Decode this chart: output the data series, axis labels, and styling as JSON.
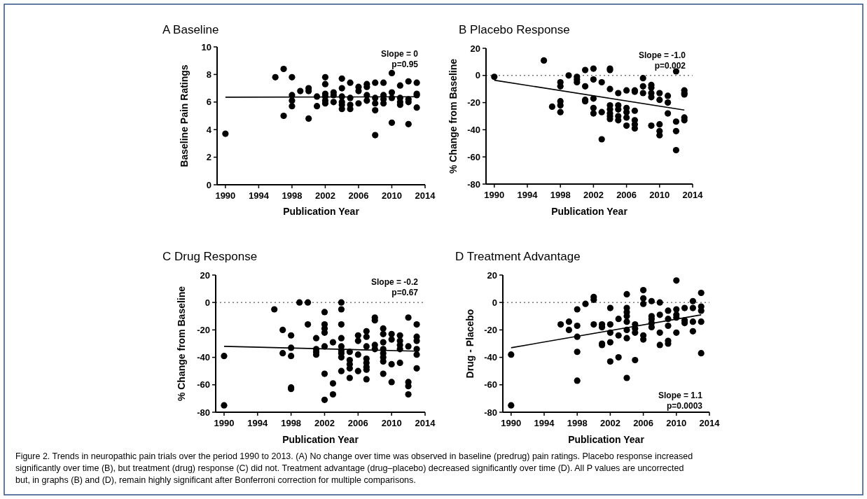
{
  "chart_data": [
    {
      "type": "scatter",
      "title": "A Baseline",
      "xlabel": "Publication Year",
      "ylabel": "Baseline Pain Ratings",
      "xlim": [
        1989,
        2014
      ],
      "xticks": [
        1990,
        1994,
        1998,
        2002,
        2006,
        2010,
        2014
      ],
      "ylim": [
        0,
        10
      ],
      "yticks": [
        0,
        2,
        4,
        6,
        8,
        10
      ],
      "marker": "circle",
      "annotations": [
        "Slope = 0",
        "p=0.95"
      ],
      "series": [
        {
          "type": "scatter",
          "color": "#000000",
          "x": [
            1990,
            1996,
            1997,
            1997,
            1998,
            1998,
            1998,
            1998,
            1999,
            2000,
            2000,
            2000,
            2001,
            2001,
            2002,
            2002,
            2002,
            2002,
            2002,
            2002,
            2003,
            2003,
            2003,
            2004,
            2004,
            2004,
            2004,
            2004,
            2004,
            2005,
            2005,
            2005,
            2005,
            2006,
            2006,
            2006,
            2007,
            2007,
            2007,
            2007,
            2008,
            2008,
            2008,
            2008,
            2008,
            2009,
            2009,
            2009,
            2009,
            2010,
            2010,
            2010,
            2010,
            2011,
            2011,
            2011,
            2011,
            2012,
            2012,
            2012,
            2012,
            2013,
            2013,
            2013,
            2013
          ],
          "values": [
            3.7,
            7.8,
            8.4,
            5.0,
            7.8,
            6.5,
            6.1,
            5.7,
            6.8,
            7.0,
            6.8,
            4.8,
            6.4,
            5.7,
            7.8,
            7.3,
            6.6,
            6.4,
            6.1,
            5.9,
            6.7,
            6.0,
            6.5,
            7.7,
            7.0,
            6.4,
            6.0,
            5.8,
            5.5,
            7.4,
            6.3,
            5.8,
            5.5,
            7.1,
            6.8,
            5.9,
            7.3,
            7.1,
            6.5,
            6.1,
            7.4,
            6.3,
            5.9,
            5.4,
            3.6,
            7.4,
            6.5,
            6.2,
            5.9,
            8.1,
            6.7,
            6.3,
            4.5,
            7.2,
            6.3,
            6.0,
            5.8,
            7.5,
            6.2,
            6.0,
            4.4,
            7.4,
            6.6,
            6.5,
            5.6
          ]
        },
        {
          "type": "line",
          "color": "#000000",
          "marker": "none",
          "x": [
            1990,
            2013
          ],
          "values": [
            6.35,
            6.38
          ]
        }
      ]
    },
    {
      "type": "scatter",
      "title": "B Placebo Response",
      "xlabel": "Publication Year",
      "ylabel": "% Change from Baseline",
      "xlim": [
        1989,
        2014
      ],
      "xticks": [
        1990,
        1994,
        1998,
        2002,
        2006,
        2010,
        2014
      ],
      "ylim": [
        -80,
        20
      ],
      "yticks": [
        -80,
        -60,
        -40,
        -20,
        0,
        20
      ],
      "marker": "circle",
      "annotations": [
        "Slope = -1.0",
        "p=0.002"
      ],
      "ref_lines": [
        {
          "axis": "y",
          "value": 0,
          "line_style": "dotted",
          "color": "#777777"
        }
      ],
      "series": [
        {
          "type": "scatter",
          "color": "#000000",
          "x": [
            1990,
            1996,
            1997,
            1998,
            1998,
            1998,
            1998,
            1998,
            1999,
            2000,
            2000,
            2000,
            2001,
            2001,
            2001,
            2001,
            2002,
            2002,
            2002,
            2002,
            2002,
            2003,
            2003,
            2003,
            2004,
            2004,
            2004,
            2004,
            2004,
            2004,
            2004,
            2004,
            2005,
            2005,
            2005,
            2005,
            2005,
            2006,
            2006,
            2006,
            2006,
            2006,
            2007,
            2007,
            2007,
            2007,
            2007,
            2007,
            2008,
            2008,
            2008,
            2009,
            2009,
            2009,
            2009,
            2009,
            2010,
            2010,
            2010,
            2010,
            2010,
            2011,
            2011,
            2011,
            2012,
            2012,
            2012,
            2012,
            2013,
            2013,
            2013,
            2013,
            2013
          ],
          "values": [
            -1,
            11,
            -23,
            -5,
            -8,
            -19,
            -22,
            -27,
            0,
            -1,
            -3,
            -5,
            4,
            -8,
            -18,
            -19,
            5,
            -3,
            -17,
            -24,
            -28,
            -5,
            -27,
            -47,
            5,
            4,
            -10,
            -22,
            -25,
            -28,
            -30,
            -32,
            -13,
            -22,
            -25,
            -30,
            -33,
            -11,
            -24,
            -27,
            -31,
            -37,
            -11,
            -12,
            -26,
            -33,
            -36,
            -39,
            -2,
            -8,
            -13,
            -7,
            -9,
            -13,
            -16,
            -37,
            -13,
            -18,
            -36,
            -41,
            -44,
            -15,
            -20,
            -28,
            3,
            -34,
            -41,
            -55,
            -11,
            -13,
            -14,
            -31,
            -33
          ]
        },
        {
          "type": "line",
          "color": "#000000",
          "marker": "none",
          "x": [
            1990,
            2013
          ],
          "values": [
            -3.5,
            -25.5
          ]
        }
      ]
    },
    {
      "type": "scatter",
      "title": "C Drug Response",
      "xlabel": "Publication Year",
      "ylabel": "% Change from Baseline",
      "xlim": [
        1989,
        2014
      ],
      "xticks": [
        1990,
        1994,
        1998,
        2002,
        2006,
        2010,
        2014
      ],
      "ylim": [
        -80,
        20
      ],
      "yticks": [
        -80,
        -60,
        -40,
        -20,
        0,
        20
      ],
      "marker": "circle",
      "annotations": [
        "Slope = -0.2",
        "p=0.67"
      ],
      "ref_lines": [
        {
          "axis": "y",
          "value": 0,
          "line_style": "dotted",
          "color": "#777777"
        }
      ],
      "series": [
        {
          "type": "scatter",
          "color": "#000000",
          "x": [
            1990,
            1990,
            1996,
            1997,
            1997,
            1998,
            1998,
            1998,
            1998,
            1998,
            1999,
            2000,
            2000,
            2001,
            2001,
            2001,
            2001,
            2002,
            2002,
            2002,
            2002,
            2002,
            2002,
            2002,
            2003,
            2003,
            2003,
            2004,
            2004,
            2004,
            2004,
            2004,
            2004,
            2004,
            2004,
            2004,
            2005,
            2005,
            2005,
            2005,
            2005,
            2006,
            2006,
            2006,
            2006,
            2007,
            2007,
            2007,
            2007,
            2007,
            2007,
            2007,
            2007,
            2008,
            2008,
            2008,
            2008,
            2009,
            2009,
            2009,
            2009,
            2009,
            2009,
            2009,
            2009,
            2010,
            2010,
            2010,
            2010,
            2011,
            2011,
            2011,
            2011,
            2011,
            2012,
            2012,
            2012,
            2012,
            2012,
            2013,
            2013,
            2013,
            2013,
            2013,
            2013
          ],
          "values": [
            -39,
            -75,
            -5,
            -20,
            -37,
            -24,
            -33,
            -39,
            -62,
            -63,
            0,
            0,
            -16,
            -26,
            -34,
            -36,
            -38,
            -7,
            -16,
            -19,
            -22,
            -32,
            -52,
            -71,
            -29,
            -59,
            -67,
            0,
            -5,
            -16,
            -26,
            -32,
            -35,
            -37,
            -40,
            -50,
            -36,
            -42,
            -45,
            -48,
            -55,
            -24,
            -28,
            -38,
            -50,
            -21,
            -25,
            -32,
            -41,
            -44,
            -47,
            -49,
            -56,
            -11,
            -13,
            -31,
            -34,
            -19,
            -23,
            -29,
            -34,
            -37,
            -40,
            -43,
            -52,
            -23,
            -27,
            -45,
            -58,
            -24,
            -28,
            -31,
            -34,
            -44,
            -11,
            -32,
            -58,
            -61,
            -67,
            -16,
            -25,
            -28,
            -34,
            -38,
            -48
          ]
        },
        {
          "type": "line",
          "color": "#000000",
          "marker": "none",
          "x": [
            1990,
            2013
          ],
          "values": [
            -32,
            -35.5
          ]
        }
      ]
    },
    {
      "type": "scatter",
      "title": "D Treatment Advantage",
      "xlabel": "Publication Year",
      "ylabel": "Drug - Placebo",
      "xlim": [
        1989,
        2014
      ],
      "xticks": [
        1990,
        1994,
        1998,
        2002,
        2006,
        2010,
        2014
      ],
      "ylim": [
        -80,
        20
      ],
      "yticks": [
        -80,
        -60,
        -40,
        -20,
        0,
        20
      ],
      "marker": "circle",
      "annotations": [
        "Slope = 1.1",
        "p=0.0003",
        "Figure 2. Trends in neuropathic pain trials over the period 1990 to 2013. (A) No change over time was observed in baseline (predrug) pain ratings. Placebo response increased significantly over time (B), but treatment (drug) response (C) did not. Treatment advantage (drug–placebo) decreased significantly over time (D). All P values are uncorrected but, in graphs (B) and (D), remain highly significant after Bonferroni correction for multiple comparisons."
      ],
      "ref_lines": [
        {
          "axis": "y",
          "value": 0,
          "line_style": "dotted",
          "color": "#777777"
        }
      ],
      "series": [
        {
          "type": "scatter",
          "color": "#000000",
          "x": [
            1990,
            1990,
            1996,
            1997,
            1997,
            1998,
            1998,
            1998,
            1998,
            1998,
            1999,
            2000,
            2000,
            2000,
            2001,
            2001,
            2001,
            2001,
            2002,
            2002,
            2002,
            2002,
            2002,
            2003,
            2003,
            2003,
            2004,
            2004,
            2004,
            2004,
            2004,
            2004,
            2004,
            2004,
            2005,
            2005,
            2005,
            2005,
            2006,
            2006,
            2006,
            2006,
            2006,
            2007,
            2007,
            2007,
            2007,
            2007,
            2008,
            2008,
            2008,
            2008,
            2009,
            2009,
            2009,
            2009,
            2009,
            2010,
            2010,
            2010,
            2010,
            2010,
            2011,
            2011,
            2011,
            2012,
            2012,
            2012,
            2012,
            2013,
            2013,
            2013,
            2013,
            2013
          ],
          "values": [
            -38,
            -75,
            -16,
            -14,
            -20,
            -5,
            -17,
            -25,
            -36,
            -57,
            -1,
            4,
            2,
            -16,
            -16,
            -18,
            -30,
            -31,
            -4,
            -16,
            -22,
            -29,
            -43,
            -12,
            -24,
            -40,
            6,
            -4,
            -7,
            -10,
            -14,
            -20,
            -26,
            -55,
            -16,
            -19,
            -22,
            -42,
            9,
            3,
            -1,
            -24,
            -27,
            1,
            -10,
            -12,
            -15,
            -18,
            0,
            -9,
            -22,
            -31,
            -6,
            -12,
            -17,
            -28,
            -30,
            16,
            -5,
            -9,
            -11,
            -22,
            -4,
            -13,
            -15,
            1,
            -4,
            -14,
            -21,
            7,
            -3,
            -6,
            -14,
            -37
          ]
        },
        {
          "type": "line",
          "color": "#000000",
          "marker": "none",
          "x": [
            1990,
            2013
          ],
          "values": [
            -33,
            -9
          ]
        }
      ]
    }
  ]
}
